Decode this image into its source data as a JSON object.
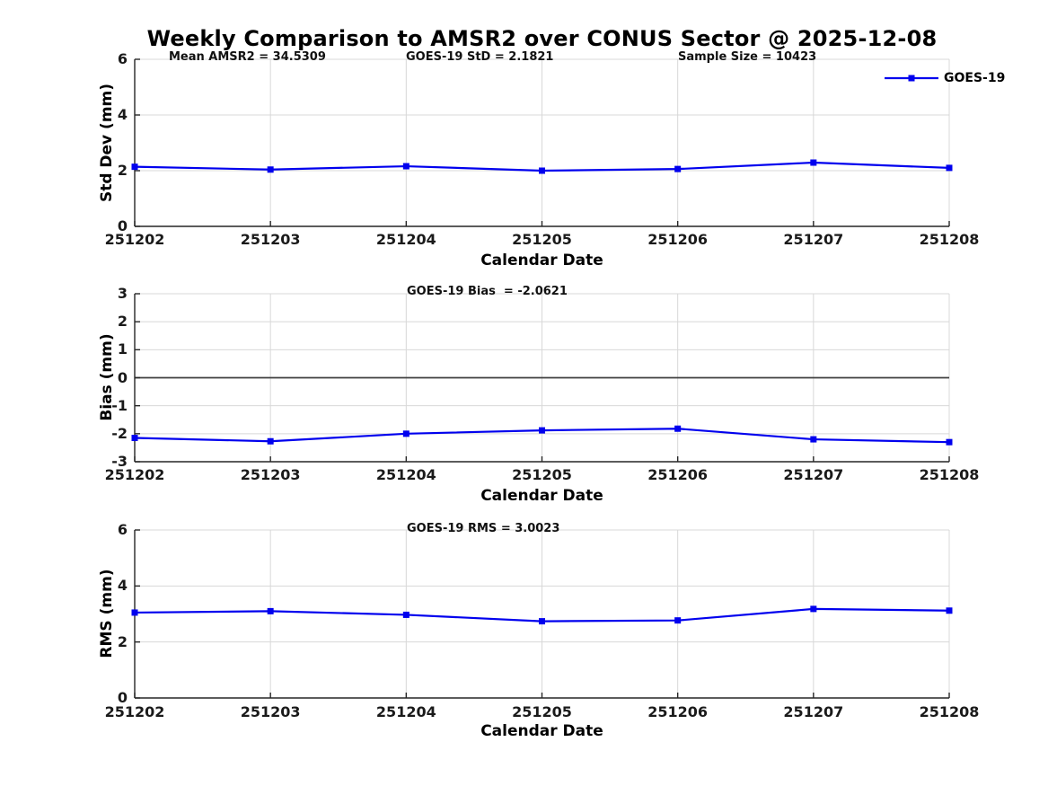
{
  "figure": {
    "title": "Weekly Comparison to AMSR2 over CONUS Sector @ 2025-12-08",
    "background_color": "#FFFFFF",
    "line_color": "#0000EE",
    "grid_color": "#D8D8D8",
    "axis_color": "#262626",
    "zero_line_color": "#3F3F3F"
  },
  "legend": {
    "label": "GOES-19",
    "marker": "filled-square",
    "position": "top-right-outside"
  },
  "chart_data": [
    {
      "type": "line",
      "subplot": "std-dev",
      "annotations": [
        "Mean AMSR2 = 34.5309",
        "GOES-19 StD = 2.1821",
        "Sample Size = 10423"
      ],
      "categories": [
        "251202",
        "251203",
        "251204",
        "251205",
        "251206",
        "251207",
        "251208"
      ],
      "series": [
        {
          "name": "GOES-19",
          "values": [
            2.14,
            2.04,
            2.16,
            2.0,
            2.06,
            2.29,
            2.1
          ]
        }
      ],
      "xlabel": "Calendar Date",
      "ylabel": "Std Dev (mm)",
      "ylim": [
        0,
        6
      ],
      "yticks": [
        0,
        2,
        4,
        6
      ],
      "grid": true,
      "zero_line": false
    },
    {
      "type": "line",
      "subplot": "bias",
      "annotations": [
        "GOES-19 Bias  = -2.0621"
      ],
      "categories": [
        "251202",
        "251203",
        "251204",
        "251205",
        "251206",
        "251207",
        "251208"
      ],
      "series": [
        {
          "name": "GOES-19",
          "values": [
            -2.15,
            -2.27,
            -2.0,
            -1.88,
            -1.82,
            -2.2,
            -2.3
          ]
        }
      ],
      "xlabel": "Calendar Date",
      "ylabel": "Bias (mm)",
      "ylim": [
        -3,
        3
      ],
      "yticks": [
        -3,
        -2,
        -1,
        0,
        1,
        2,
        3
      ],
      "grid": true,
      "zero_line": true
    },
    {
      "type": "line",
      "subplot": "rms",
      "annotations": [
        "GOES-19 RMS = 3.0023"
      ],
      "categories": [
        "251202",
        "251203",
        "251204",
        "251205",
        "251206",
        "251207",
        "251208"
      ],
      "series": [
        {
          "name": "GOES-19",
          "values": [
            3.05,
            3.1,
            2.97,
            2.74,
            2.77,
            3.18,
            3.12
          ]
        }
      ],
      "xlabel": "Calendar Date",
      "ylabel": "RMS (mm)",
      "ylim": [
        0,
        6
      ],
      "yticks": [
        0,
        2,
        4,
        6
      ],
      "grid": true,
      "zero_line": false
    }
  ]
}
